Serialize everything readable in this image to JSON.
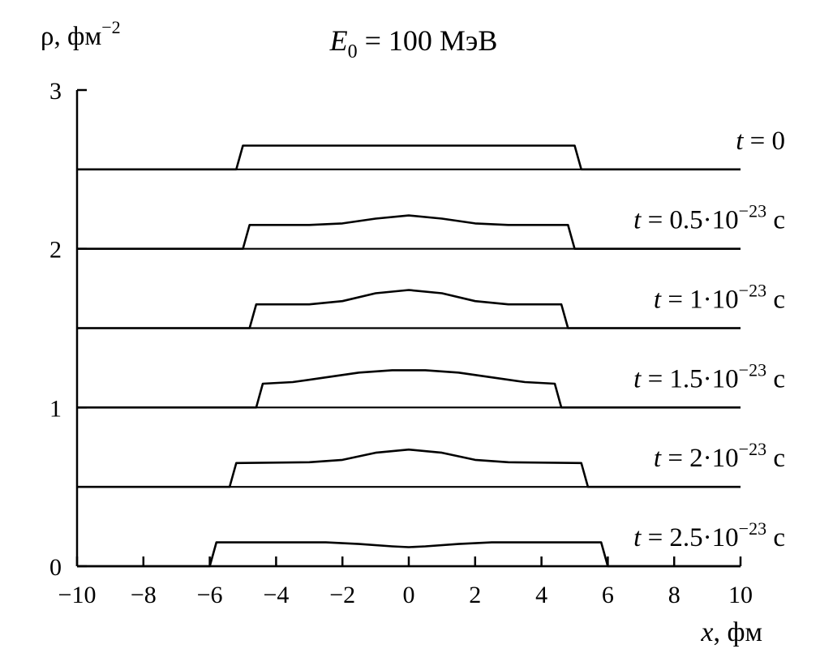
{
  "chart_data": {
    "type": "line",
    "title_math": {
      "var": "E",
      "sub": "0",
      "rest": " = 100 МэВ"
    },
    "ylabel": {
      "sym": "ρ",
      "unit": ", фм",
      "exp": "−2"
    },
    "xlabel": {
      "var": "x",
      "unit": ", фм"
    },
    "xlim": [
      -10,
      10
    ],
    "ylim": [
      0,
      3
    ],
    "xticks": [
      -10,
      -8,
      -6,
      -4,
      -2,
      0,
      2,
      4,
      6,
      8,
      10
    ],
    "xtick_labels": [
      "−10",
      "−8",
      "−6",
      "−4",
      "−2",
      "0",
      "2",
      "4",
      "6",
      "8",
      "10"
    ],
    "yticks": [
      0,
      1,
      2,
      3
    ],
    "ytick_labels": [
      "0",
      "1",
      "2",
      "3"
    ],
    "grid": false,
    "series": [
      {
        "label": {
          "var": "t",
          "mid": " = 0",
          "exp": "",
          "unit": ""
        },
        "offset": 2.5,
        "points": [
          [
            -10,
            2.5
          ],
          [
            -5.2,
            2.5
          ],
          [
            -5.0,
            2.65
          ],
          [
            5.0,
            2.65
          ],
          [
            5.2,
            2.5
          ],
          [
            10,
            2.5
          ]
        ]
      },
      {
        "label": {
          "var": "t",
          "mid": " = 0.5·10",
          "exp": "−23",
          "unit": " с"
        },
        "offset": 2.0,
        "points": [
          [
            -10,
            2.0
          ],
          [
            -5.0,
            2.0
          ],
          [
            -4.8,
            2.15
          ],
          [
            -3.0,
            2.15
          ],
          [
            -2.0,
            2.16
          ],
          [
            -1.0,
            2.19
          ],
          [
            0,
            2.21
          ],
          [
            1.0,
            2.19
          ],
          [
            2.0,
            2.16
          ],
          [
            3.0,
            2.15
          ],
          [
            4.8,
            2.15
          ],
          [
            5.0,
            2.0
          ],
          [
            10,
            2.0
          ]
        ]
      },
      {
        "label": {
          "var": "t",
          "mid": " = 1·10",
          "exp": "−23",
          "unit": " с"
        },
        "offset": 1.5,
        "points": [
          [
            -10,
            1.5
          ],
          [
            -4.8,
            1.5
          ],
          [
            -4.6,
            1.65
          ],
          [
            -3.0,
            1.65
          ],
          [
            -2.0,
            1.67
          ],
          [
            -1.0,
            1.72
          ],
          [
            0,
            1.74
          ],
          [
            1.0,
            1.72
          ],
          [
            2.0,
            1.67
          ],
          [
            3.0,
            1.65
          ],
          [
            4.6,
            1.65
          ],
          [
            4.8,
            1.5
          ],
          [
            10,
            1.5
          ]
        ]
      },
      {
        "label": {
          "var": "t",
          "mid": " = 1.5·10",
          "exp": "−23",
          "unit": " с"
        },
        "offset": 1.0,
        "points": [
          [
            -10,
            1.0
          ],
          [
            -4.6,
            1.0
          ],
          [
            -4.4,
            1.15
          ],
          [
            -3.5,
            1.16
          ],
          [
            -2.5,
            1.19
          ],
          [
            -1.5,
            1.22
          ],
          [
            -0.5,
            1.235
          ],
          [
            0.5,
            1.235
          ],
          [
            1.5,
            1.22
          ],
          [
            2.5,
            1.19
          ],
          [
            3.5,
            1.16
          ],
          [
            4.4,
            1.15
          ],
          [
            4.6,
            1.0
          ],
          [
            10,
            1.0
          ]
        ]
      },
      {
        "label": {
          "var": "t",
          "mid": " = 2·10",
          "exp": "−23",
          "unit": " с"
        },
        "offset": 0.5,
        "points": [
          [
            -10,
            0.5
          ],
          [
            -5.4,
            0.5
          ],
          [
            -5.2,
            0.65
          ],
          [
            -3.0,
            0.655
          ],
          [
            -2.0,
            0.67
          ],
          [
            -1.0,
            0.715
          ],
          [
            0,
            0.735
          ],
          [
            1.0,
            0.715
          ],
          [
            2.0,
            0.67
          ],
          [
            3.0,
            0.655
          ],
          [
            5.2,
            0.65
          ],
          [
            5.4,
            0.5
          ],
          [
            10,
            0.5
          ]
        ]
      },
      {
        "label": {
          "var": "t",
          "mid": " = 2.5·10",
          "exp": "−23",
          "unit": " с"
        },
        "offset": 0.0,
        "points": [
          [
            -10,
            0.0
          ],
          [
            -6.0,
            0.0
          ],
          [
            -5.8,
            0.15
          ],
          [
            -2.5,
            0.15
          ],
          [
            -1.5,
            0.14
          ],
          [
            -0.5,
            0.125
          ],
          [
            0,
            0.12
          ],
          [
            0.5,
            0.125
          ],
          [
            1.5,
            0.14
          ],
          [
            2.5,
            0.15
          ],
          [
            5.8,
            0.15
          ],
          [
            6.0,
            0.0
          ],
          [
            10,
            0.0
          ]
        ]
      }
    ]
  }
}
